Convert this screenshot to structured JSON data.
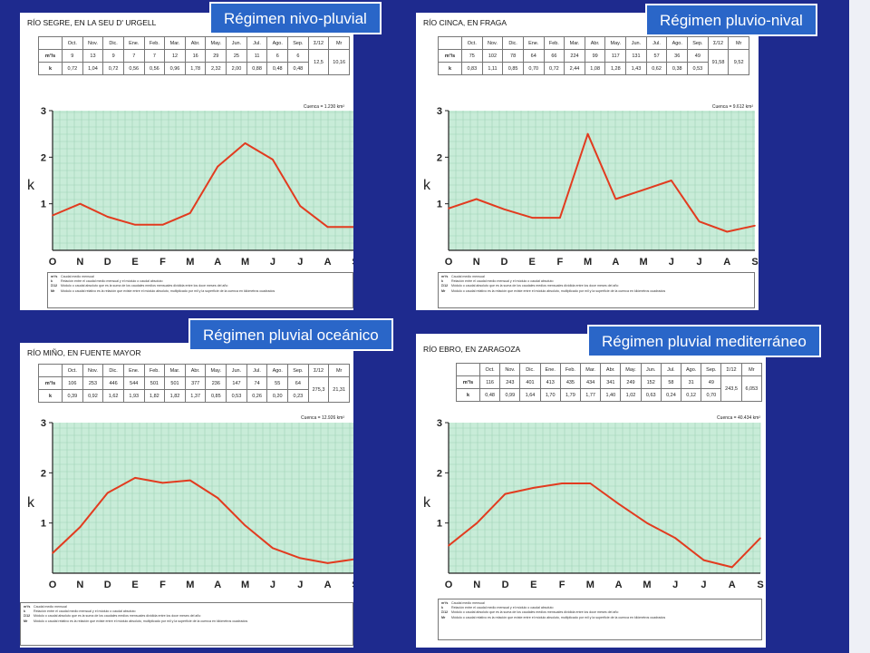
{
  "table_head": [
    "",
    "Oct.",
    "Nov.",
    "Dic.",
    "Ene.",
    "Feb.",
    "Mar.",
    "Abr.",
    "May.",
    "Jun.",
    "Jul.",
    "Ago.",
    "Sep.",
    "Σ/12",
    "Mr"
  ],
  "row_labels": [
    "m³/s",
    "k"
  ],
  "legend": [
    [
      "m³/s",
      "Caudal medio mensual"
    ],
    [
      "k",
      "Relación entre el caudal medio mensual y el módulo o caudal absoluto"
    ],
    [
      "Σ/12",
      "Módulo o caudal absoluto que es la suma de los caudales medios mensuales dividida entre los doce meses del año"
    ],
    [
      "Mr",
      "Módulo o caudal relativo es la relación que existe entre el módulo absoluto, multiplicado por mil y la superficie de la cuenca en kilómetros cuadrados"
    ]
  ],
  "panels": [
    {
      "badge": "Régimen nivo-pluvial",
      "river": "RÍO SEGRE, EN LA SEU D' URGELL",
      "flow": [
        "9",
        "13",
        "9",
        "7",
        "7",
        "12",
        "16",
        "29",
        "25",
        "11",
        "6",
        "6"
      ],
      "k": [
        "0,72",
        "1,04",
        "0,72",
        "0,56",
        "0,56",
        "0,96",
        "1,78",
        "2,32",
        "2,00",
        "0,88",
        "0,48",
        "0,48"
      ],
      "sum": "12,5",
      "mr": "10,16",
      "basin": "Cuenca = 1.230 km²"
    },
    {
      "badge": "Régimen pluvio-nival",
      "river": "RÍO CINCA, EN FRAGA",
      "flow": [
        "75",
        "102",
        "78",
        "64",
        "66",
        "224",
        "99",
        "117",
        "131",
        "57",
        "36",
        "49"
      ],
      "k": [
        "0,83",
        "1,11",
        "0,85",
        "0,70",
        "0,72",
        "2,44",
        "1,08",
        "1,28",
        "1,43",
        "0,62",
        "0,38",
        "0,53"
      ],
      "sum": "91,58",
      "mr": "9,52",
      "basin": "Cuenca = 9.612 km²"
    },
    {
      "badge": "Régimen pluvial oceánico",
      "river": "RÍO MIÑO, EN FUENTE MAYOR",
      "flow": [
        "106",
        "253",
        "446",
        "544",
        "501",
        "501",
        "377",
        "236",
        "147",
        "74",
        "55",
        "64"
      ],
      "k": [
        "0,39",
        "0,92",
        "1,62",
        "1,93",
        "1,82",
        "1,82",
        "1,37",
        "0,85",
        "0,53",
        "0,26",
        "0,20",
        "0,23"
      ],
      "sum": "275,3",
      "mr": "21,31",
      "basin": "Cuenca = 12.926 km²"
    },
    {
      "badge": "Régimen pluvial mediterráneo",
      "river": "RÍO EBRO, EN ZARAGOZA",
      "flow": [
        "116",
        "243",
        "401",
        "413",
        "435",
        "434",
        "341",
        "249",
        "152",
        "58",
        "31",
        "49"
      ],
      "k": [
        "0,48",
        "0,99",
        "1,64",
        "1,70",
        "1,79",
        "1,77",
        "1,40",
        "1,02",
        "0,63",
        "0,24",
        "0,12",
        "0,70"
      ],
      "sum": "243,5",
      "mr": "6,053",
      "basin": "Cuenca = 40.434 km²"
    }
  ],
  "chart_data": [
    {
      "type": "line",
      "title": "Régimen nivo-pluvial",
      "ylabel": "k",
      "categories": [
        "O",
        "N",
        "D",
        "E",
        "F",
        "M",
        "A",
        "M",
        "J",
        "J",
        "A",
        "S"
      ],
      "y_ticks": [
        "1",
        "2",
        "3"
      ],
      "ylim": [
        0,
        3
      ],
      "grid": true,
      "series": [
        {
          "values": [
            0.75,
            1.0,
            0.72,
            0.55,
            0.55,
            0.8,
            1.8,
            2.3,
            1.95,
            0.95,
            0.5,
            0.5
          ],
          "color": "#e23b1f"
        }
      ]
    },
    {
      "type": "line",
      "title": "Régimen pluvio-nival",
      "ylabel": "k",
      "categories": [
        "O",
        "N",
        "D",
        "E",
        "F",
        "M",
        "A",
        "M",
        "J",
        "J",
        "A",
        "S"
      ],
      "y_ticks": [
        "1",
        "2",
        "3"
      ],
      "ylim": [
        0,
        3
      ],
      "grid": true,
      "series": [
        {
          "values": [
            0.9,
            1.1,
            0.88,
            0.7,
            0.7,
            2.5,
            1.1,
            1.3,
            1.5,
            0.62,
            0.4,
            0.53
          ],
          "color": "#e23b1f"
        }
      ]
    },
    {
      "type": "line",
      "title": "Régimen pluvial oceánico",
      "ylabel": "k",
      "categories": [
        "O",
        "N",
        "D",
        "E",
        "F",
        "M",
        "A",
        "M",
        "J",
        "J",
        "A",
        "S"
      ],
      "y_ticks": [
        "1",
        "2",
        "3"
      ],
      "ylim": [
        0,
        3
      ],
      "grid": true,
      "series": [
        {
          "values": [
            0.4,
            0.92,
            1.6,
            1.9,
            1.8,
            1.85,
            1.5,
            0.95,
            0.5,
            0.3,
            0.2,
            0.28
          ],
          "color": "#e23b1f"
        }
      ]
    },
    {
      "type": "line",
      "title": "Régimen pluvial mediterráneo",
      "ylabel": "k",
      "categories": [
        "O",
        "N",
        "D",
        "E",
        "F",
        "M",
        "A",
        "M",
        "J",
        "J",
        "A",
        "S"
      ],
      "y_ticks": [
        "1",
        "2",
        "3"
      ],
      "ylim": [
        0,
        3
      ],
      "grid": true,
      "series": [
        {
          "values": [
            0.55,
            1.0,
            1.58,
            1.7,
            1.79,
            1.79,
            1.38,
            1.0,
            0.7,
            0.26,
            0.12,
            0.7
          ],
          "color": "#e23b1f"
        }
      ]
    }
  ],
  "colors": {
    "slide_bg": "#1e2a8e",
    "badge_bg": "#2a66c8",
    "plot_bg": "#c8ecd8",
    "grid": "#9fd3b6",
    "line": "#e23b1f"
  }
}
